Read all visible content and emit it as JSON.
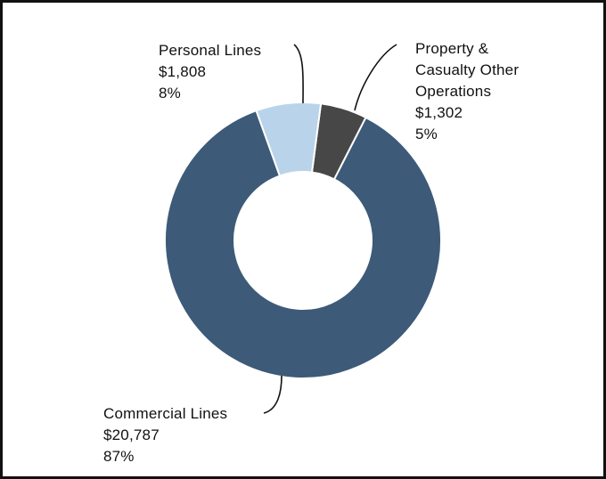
{
  "chart_data": {
    "type": "pie",
    "style": "donut",
    "title": "",
    "slices": [
      {
        "name": "Property & Casualty Other Operations",
        "label_lines": [
          "Property &",
          "Casualty Other",
          "Operations"
        ],
        "value_label": "$1,302",
        "percent_label": "5%",
        "value": 1302,
        "color": "#474747"
      },
      {
        "name": "Commercial Lines",
        "label_lines": [
          "Commercial Lines"
        ],
        "value_label": "$20,787",
        "percent_label": "87%",
        "value": 20787,
        "color": "#3d5a78"
      },
      {
        "name": "Personal Lines",
        "label_lines": [
          "Personal Lines"
        ],
        "value_label": "$1,808",
        "percent_label": "8%",
        "value": 1808,
        "color": "#b9d4ea"
      }
    ]
  }
}
